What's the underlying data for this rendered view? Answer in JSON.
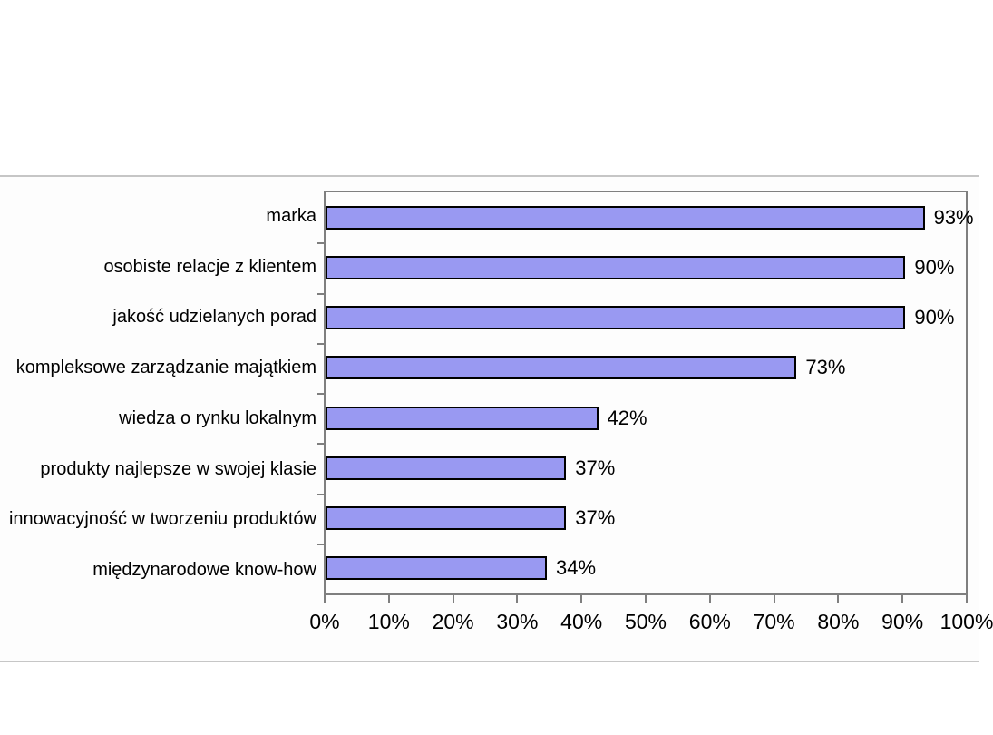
{
  "chart_data": {
    "type": "bar",
    "orientation": "horizontal",
    "title": "",
    "categories": [
      "marka",
      "osobiste relacje z klientem",
      "jakość udzielanych porad",
      "kompleksowe zarządzanie majątkiem",
      "wiedza o rynku lokalnym",
      "produkty najlepsze w swojej klasie",
      "innowacyjność w tworzeniu produktów",
      "międzynarodowe know-how"
    ],
    "values": [
      93,
      90,
      90,
      73,
      42,
      37,
      37,
      34
    ],
    "data_labels": [
      "93%",
      "90%",
      "90%",
      "73%",
      "42%",
      "37%",
      "37%",
      "34%"
    ],
    "x_axis": {
      "tick_labels": [
        "0%",
        "10%",
        "20%",
        "30%",
        "40%",
        "50%",
        "60%",
        "70%",
        "80%",
        "90%",
        "100%"
      ],
      "min": 0,
      "max": 100,
      "step": 10
    },
    "xlim": [
      0,
      100
    ],
    "grid": false,
    "legend": false,
    "colors": {
      "bar_fill": "#9999F2",
      "bar_border": "#000000",
      "plot_border": "#7F7F7F",
      "frame_border": "#C6C6C6",
      "text": "#000000"
    }
  }
}
